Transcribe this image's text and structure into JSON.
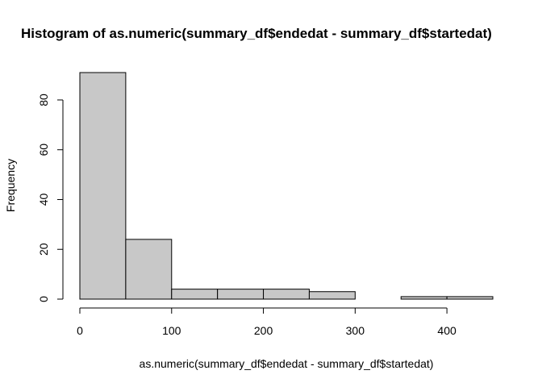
{
  "chart_data": {
    "type": "bar",
    "title": "Histogram of as.numeric(summary_df$endedat - summary_df$startedat)",
    "xlabel": "as.numeric(summary_df$endedat - summary_df$startedat)",
    "ylabel": "Frequency",
    "bins": [
      {
        "x0": 0,
        "x1": 50,
        "count": 91
      },
      {
        "x0": 50,
        "x1": 100,
        "count": 24
      },
      {
        "x0": 100,
        "x1": 150,
        "count": 4
      },
      {
        "x0": 150,
        "x1": 200,
        "count": 4
      },
      {
        "x0": 200,
        "x1": 250,
        "count": 4
      },
      {
        "x0": 250,
        "x1": 300,
        "count": 3
      },
      {
        "x0": 300,
        "x1": 350,
        "count": 0
      },
      {
        "x0": 350,
        "x1": 400,
        "count": 1
      },
      {
        "x0": 400,
        "x1": 450,
        "count": 1
      }
    ],
    "x_ticks": [
      0,
      100,
      200,
      300,
      400
    ],
    "y_ticks": [
      0,
      20,
      40,
      60,
      80
    ],
    "xlim": [
      0,
      450
    ],
    "ylim": [
      0,
      91
    ],
    "grid": false,
    "legend": "none",
    "bar_fill": "#c8c8c8",
    "bar_stroke": "#000000"
  }
}
